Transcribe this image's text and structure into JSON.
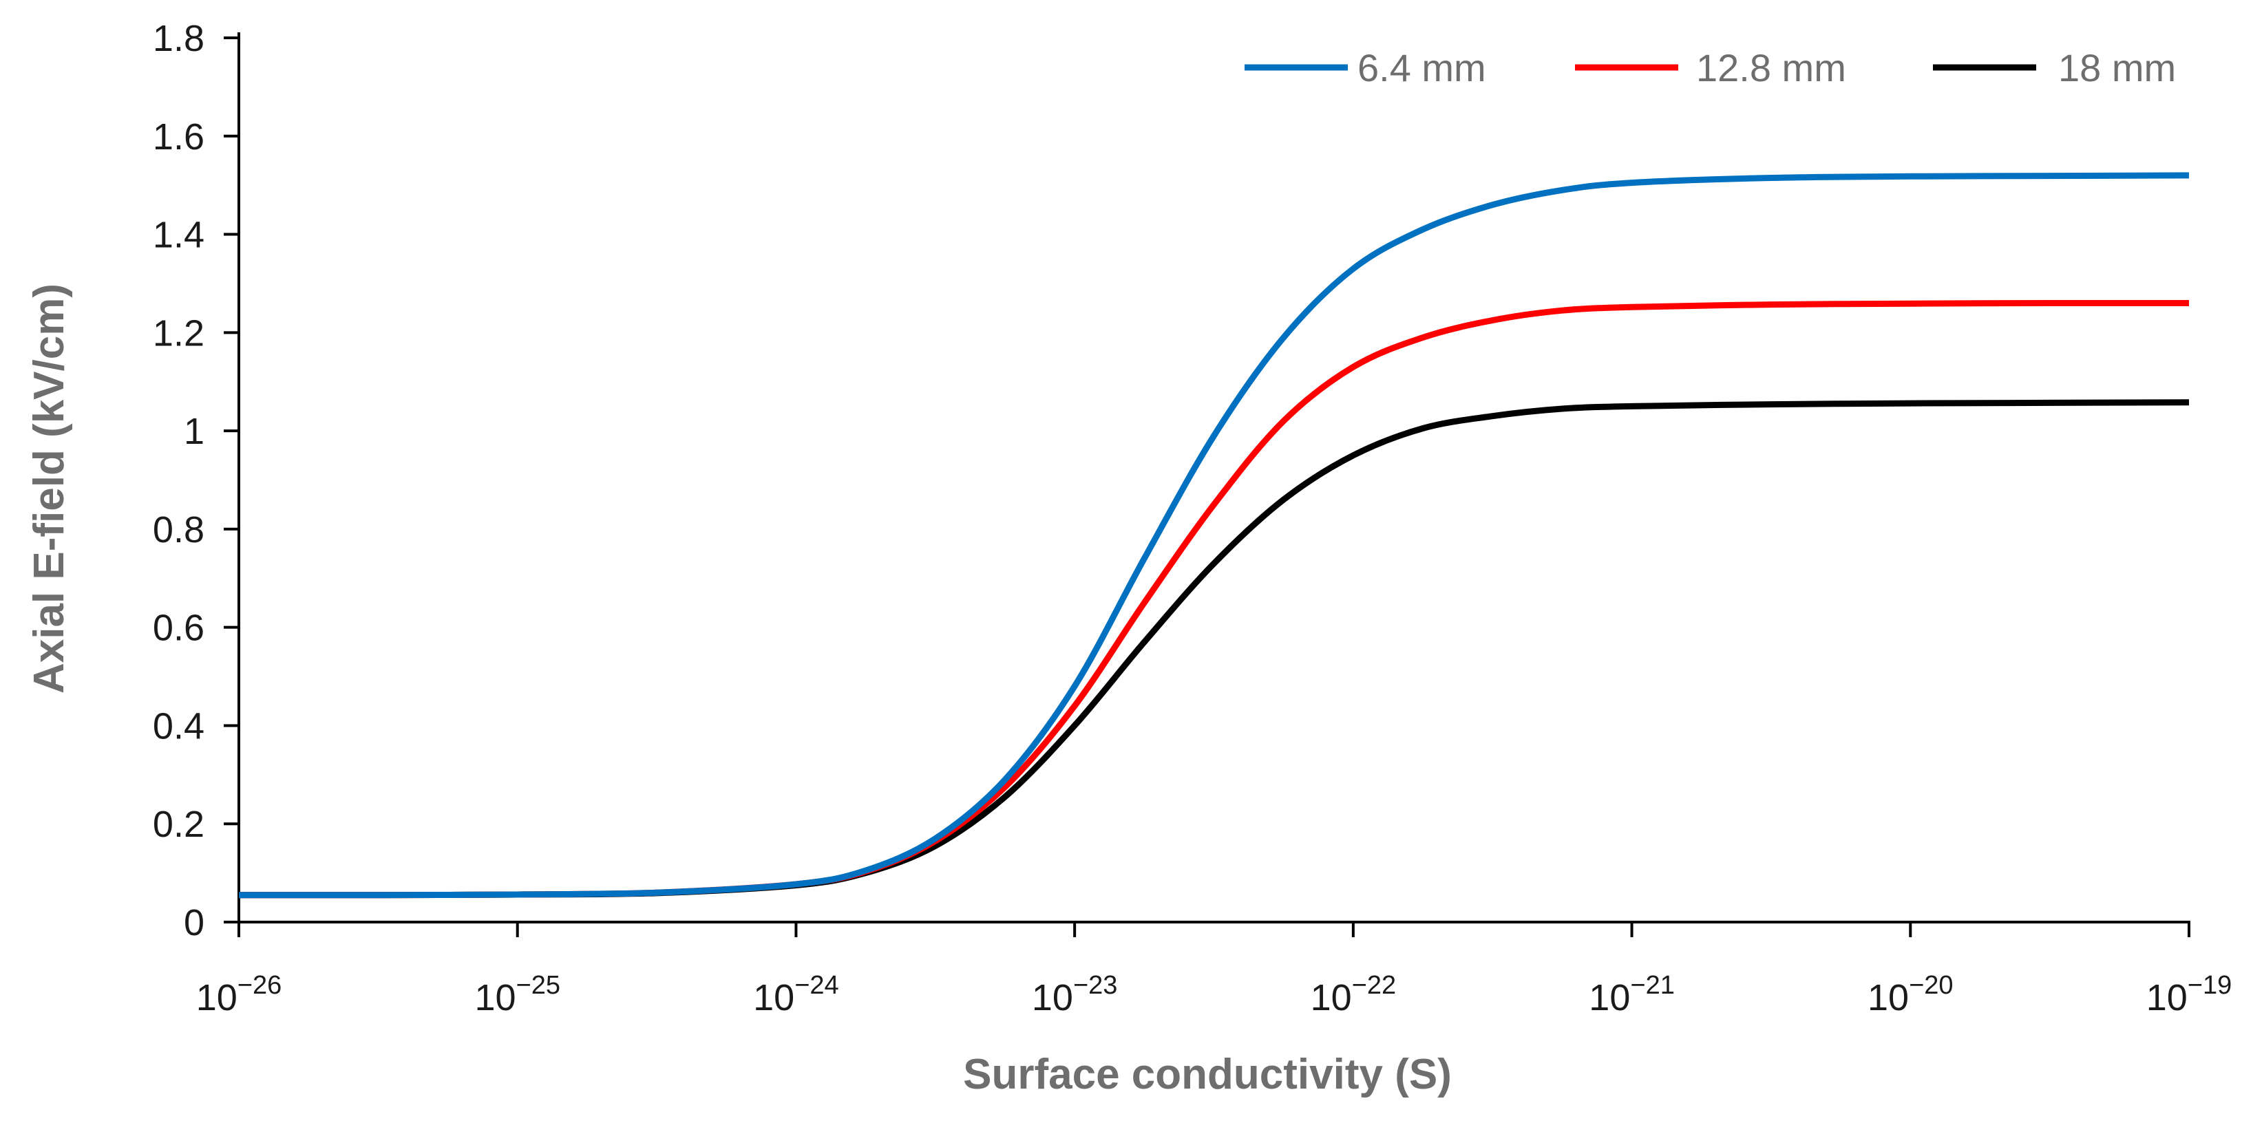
{
  "chart_data": {
    "type": "line",
    "title": "",
    "xlabel": "Surface conductivity (S)",
    "ylabel": "Axial E-field (kV/cm)",
    "xscale": "log",
    "xlim": [
      1e-26,
      1e-19
    ],
    "ylim": [
      0,
      1.8
    ],
    "grid": false,
    "legend_position": "top-right",
    "x_ticks": [
      {
        "base": "10",
        "exp": "−26",
        "value": -26
      },
      {
        "base": "10",
        "exp": "−25",
        "value": -25
      },
      {
        "base": "10",
        "exp": "−24",
        "value": -24
      },
      {
        "base": "10",
        "exp": "−23",
        "value": -23
      },
      {
        "base": "10",
        "exp": "−22",
        "value": -22
      },
      {
        "base": "10",
        "exp": "−21",
        "value": -21
      },
      {
        "base": "10",
        "exp": "−20",
        "value": -20
      },
      {
        "base": "10",
        "exp": "−19",
        "value": -19
      }
    ],
    "y_ticks": [
      "0",
      "0.2",
      "0.4",
      "0.6",
      "0.8",
      "1",
      "1.2",
      "1.4",
      "1.6",
      "1.8"
    ],
    "x_log10": [
      -26,
      -25.5,
      -25,
      -24.5,
      -24,
      -23.75,
      -23.5,
      -23.25,
      -23,
      -22.75,
      -22.5,
      -22.25,
      -22,
      -21.75,
      -21.5,
      -21.25,
      -21,
      -20.5,
      -20,
      -19.5,
      -19
    ],
    "series": [
      {
        "name": "6.4 mm",
        "color": "#0070C0",
        "values": [
          0.055,
          0.055,
          0.056,
          0.06,
          0.077,
          0.105,
          0.17,
          0.29,
          0.48,
          0.74,
          0.99,
          1.19,
          1.33,
          1.41,
          1.46,
          1.49,
          1.505,
          1.515,
          1.518,
          1.519,
          1.52
        ]
      },
      {
        "name": "12.8 mm",
        "color": "#FF0000",
        "values": [
          0.055,
          0.055,
          0.056,
          0.06,
          0.077,
          0.103,
          0.165,
          0.275,
          0.44,
          0.65,
          0.85,
          1.02,
          1.13,
          1.19,
          1.225,
          1.245,
          1.252,
          1.257,
          1.259,
          1.26,
          1.26
        ]
      },
      {
        "name": "18 mm",
        "color": "#000000",
        "values": [
          0.055,
          0.055,
          0.056,
          0.059,
          0.075,
          0.1,
          0.155,
          0.255,
          0.4,
          0.57,
          0.73,
          0.86,
          0.95,
          1.005,
          1.03,
          1.045,
          1.05,
          1.054,
          1.056,
          1.057,
          1.058
        ]
      }
    ]
  }
}
